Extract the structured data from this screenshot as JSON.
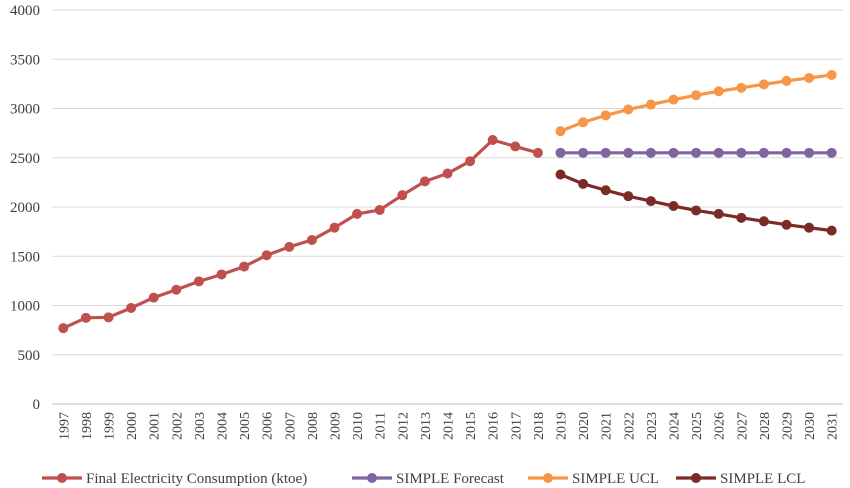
{
  "chart_data": {
    "type": "line",
    "title": "",
    "xlabel": "",
    "ylabel": "",
    "ylim": [
      0,
      4000
    ],
    "yticks": [
      0,
      500,
      1000,
      1500,
      2000,
      2500,
      3000,
      3500,
      4000
    ],
    "categories": [
      "1997",
      "1998",
      "1999",
      "2000",
      "2001",
      "2002",
      "2003",
      "2004",
      "2005",
      "2006",
      "2007",
      "2008",
      "2009",
      "2010",
      "2011",
      "2012",
      "2013",
      "2014",
      "2015",
      "2016",
      "2017",
      "2018",
      "2019",
      "2020",
      "2021",
      "2022",
      "2023",
      "2024",
      "2025",
      "2026",
      "2027",
      "2028",
      "2029",
      "2030",
      "2031"
    ],
    "grid": "horizontal",
    "legend_position": "bottom",
    "series": [
      {
        "name": "Final Electricity Consumption (ktoe)",
        "color": "#c0504d",
        "values": [
          770,
          875,
          880,
          975,
          1080,
          1160,
          1245,
          1315,
          1395,
          1510,
          1595,
          1665,
          1790,
          1930,
          1970,
          2120,
          2260,
          2340,
          2465,
          2680,
          2615,
          2550,
          null,
          null,
          null,
          null,
          null,
          null,
          null,
          null,
          null,
          null,
          null,
          null,
          null
        ]
      },
      {
        "name": "SIMPLE Forecast",
        "color": "#8064a2",
        "values": [
          null,
          null,
          null,
          null,
          null,
          null,
          null,
          null,
          null,
          null,
          null,
          null,
          null,
          null,
          null,
          null,
          null,
          null,
          null,
          null,
          null,
          null,
          2550,
          2550,
          2550,
          2550,
          2550,
          2550,
          2550,
          2550,
          2550,
          2550,
          2550,
          2550,
          2550
        ]
      },
      {
        "name": "SIMPLE UCL",
        "color": "#f79646",
        "values": [
          null,
          null,
          null,
          null,
          null,
          null,
          null,
          null,
          null,
          null,
          null,
          null,
          null,
          null,
          null,
          null,
          null,
          null,
          null,
          null,
          null,
          null,
          2770,
          2860,
          2930,
          2990,
          3040,
          3090,
          3135,
          3175,
          3210,
          3245,
          3280,
          3310,
          3340
        ]
      },
      {
        "name": "SIMPLE LCL",
        "color": "#7b2a26",
        "values": [
          null,
          null,
          null,
          null,
          null,
          null,
          null,
          null,
          null,
          null,
          null,
          null,
          null,
          null,
          null,
          null,
          null,
          null,
          null,
          null,
          null,
          null,
          2330,
          2235,
          2170,
          2110,
          2060,
          2010,
          1965,
          1930,
          1890,
          1855,
          1820,
          1790,
          1760
        ]
      }
    ]
  }
}
